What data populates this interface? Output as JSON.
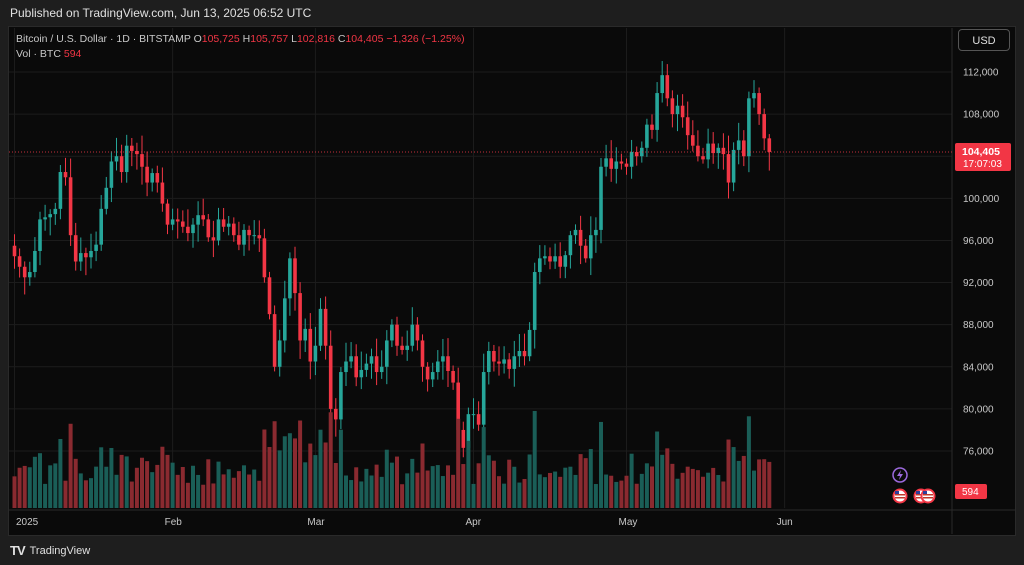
{
  "header": {
    "published": "Published on TradingView.com, Jun 13, 2025 06:52 UTC"
  },
  "legend": {
    "symbol": "Bitcoin / U.S. Dollar · 1D · BITSTAMP",
    "open_label": "O",
    "open": "105,725",
    "high_label": "H",
    "high": "105,757",
    "low_label": "L",
    "low": "102,816",
    "close_label": "C",
    "close": "104,405",
    "change": "−1,326 (−1.25%)"
  },
  "volume_legend": {
    "label": "Vol · BTC",
    "value": "594"
  },
  "currency_button": "USD",
  "price_tag": {
    "price": "104,405",
    "countdown": "17:07:03"
  },
  "volume_tag": "594",
  "footer": {
    "logo": "TV",
    "brand": "TradingView"
  },
  "colors": {
    "up": "#26a69a",
    "down": "#f23645",
    "vol_up": "#1a5e57",
    "vol_down": "#8a2a30",
    "background": "#0a0a0a",
    "grid": "#1c1c1c"
  },
  "icons": [
    "lightning-icon",
    "us-flag-event-icon",
    "us-flag-event-icon",
    "us-flag-event-icon"
  ],
  "chart_data": {
    "type": "candlestick",
    "title": "Bitcoin / U.S. Dollar · 1D · BITSTAMP",
    "ylim": [
      72000,
      114000
    ],
    "y_ticks": [
      76000,
      80000,
      84000,
      88000,
      92000,
      96000,
      100000,
      104000,
      108000,
      112000
    ],
    "y_tick_labels": [
      "76,000",
      "80,000",
      "84,000",
      "88,000",
      "92,000",
      "96,000",
      "100,000",
      "104,000",
      "108,000",
      "112,000"
    ],
    "x_labels": [
      {
        "label": "2025",
        "date": "2025-01-01"
      },
      {
        "label": "Feb",
        "date": "2025-02-01"
      },
      {
        "label": "Mar",
        "date": "2025-03-01"
      },
      {
        "label": "Apr",
        "date": "2025-04-01"
      },
      {
        "label": "May",
        "date": "2025-05-01"
      },
      {
        "label": "Jun",
        "date": "2025-06-01"
      }
    ],
    "last_price": 104405,
    "closes": [
      94500,
      93500,
      92500,
      93000,
      95000,
      98000,
      98200,
      98500,
      99000,
      102500,
      102000,
      96500,
      94000,
      94800,
      94400,
      95000,
      95600,
      99000,
      101000,
      103500,
      104000,
      102500,
      105000,
      104500,
      104200,
      103000,
      101500,
      102400,
      101500,
      99500,
      97500,
      98000,
      97800,
      97300,
      96700,
      97500,
      98400,
      98000,
      96300,
      96000,
      98000,
      97300,
      97600,
      96500,
      95600,
      97000,
      96500,
      96500,
      96200,
      92500,
      89000,
      84000,
      86500,
      90500,
      94300,
      91000,
      86500,
      87600,
      84500,
      86000,
      89500,
      86000,
      80000,
      79000,
      83500,
      84500,
      85000,
      83000,
      83700,
      84300,
      85000,
      83500,
      84000,
      86500,
      88000,
      86000,
      85600,
      86000,
      88000,
      86500,
      84000,
      82800,
      83500,
      84500,
      85000,
      83600,
      82500,
      78000,
      76300,
      79500,
      79500,
      78500,
      83500,
      85500,
      84500,
      84300,
      84700,
      83800,
      85000,
      85500,
      85000,
      87500,
      93000,
      94300,
      94500,
      94000,
      94500,
      93500,
      94600,
      96500,
      97000,
      95500,
      94300,
      96500,
      97000,
      103000,
      103800,
      102800,
      103500,
      103300,
      103000,
      104400,
      104000,
      104800,
      107000,
      106500,
      110000,
      111700,
      109500,
      108000,
      108800,
      107700,
      106000,
      105000,
      104000,
      103700,
      105200,
      104300,
      104800,
      104200,
      101500,
      104600,
      105500,
      104000,
      109500,
      110000,
      108000,
      105700,
      104405
    ]
  }
}
